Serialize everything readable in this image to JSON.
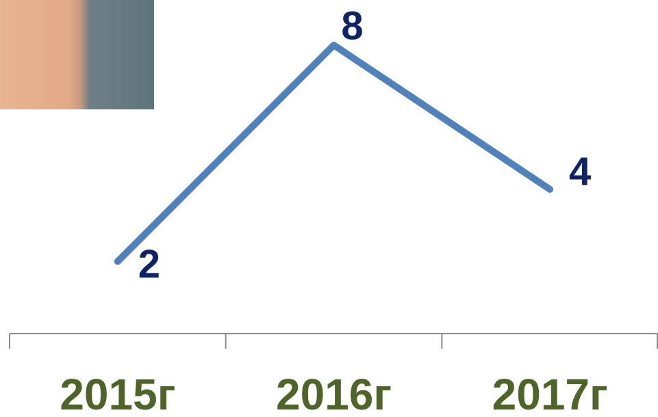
{
  "chart_data": {
    "type": "line",
    "categories": [
      "2015г",
      "2016г",
      "2017г"
    ],
    "series": [
      {
        "values": [
          2,
          8,
          4
        ],
        "color": "#4f81bd"
      }
    ]
  }
}
